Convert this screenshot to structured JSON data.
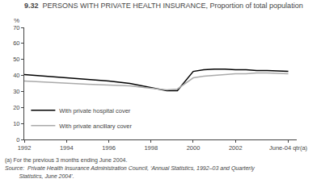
{
  "chart_data": {
    "type": "line",
    "title": "9.32",
    "subtitle": "PERSONS WITH PRIVATE HEALTH INSURANCE, Proportion of total population",
    "y_label": "%",
    "x": [
      1992,
      1993,
      1994,
      1995,
      1996,
      1997,
      1998,
      1998.75,
      1999.25,
      2000,
      2000.5,
      2001,
      2001.5,
      2002,
      2002.5,
      2003,
      2003.5,
      2004.5
    ],
    "series": [
      {
        "name": "With private hospital cover",
        "color": "#000000",
        "values": [
          40.5,
          39.5,
          38.5,
          37.5,
          36.5,
          35.0,
          32.5,
          30.5,
          30.5,
          42.5,
          43.5,
          44.0,
          44.0,
          43.5,
          43.5,
          43.0,
          43.0,
          42.5
        ]
      },
      {
        "name": "With private ancillary cover",
        "color": "#aaaaaa",
        "values": [
          36.5,
          35.8,
          35.0,
          34.5,
          34.0,
          33.5,
          32.0,
          31.0,
          31.5,
          38.5,
          39.5,
          40.0,
          40.5,
          41.0,
          41.0,
          41.5,
          41.5,
          41.0
        ]
      }
    ],
    "xlim": [
      1992,
      2004.9
    ],
    "xticks": [
      1992,
      1994,
      1996,
      1998,
      2000,
      2002,
      {
        "value": 2004.5,
        "label": "June-04 qtr(a)"
      }
    ],
    "ylim": [
      0,
      70
    ],
    "yticks": [
      0,
      10,
      20,
      30,
      40,
      50,
      60,
      70
    ],
    "grid": false,
    "legend": "lower left",
    "annotations": [
      "(a) For the previous 3 months ending June 2004.",
      "Source:  Private Health Insurance Administration Council, ‘Annual Statistics, 1992–03 and Quarterly",
      "         Statistics, June 2004’."
    ]
  }
}
